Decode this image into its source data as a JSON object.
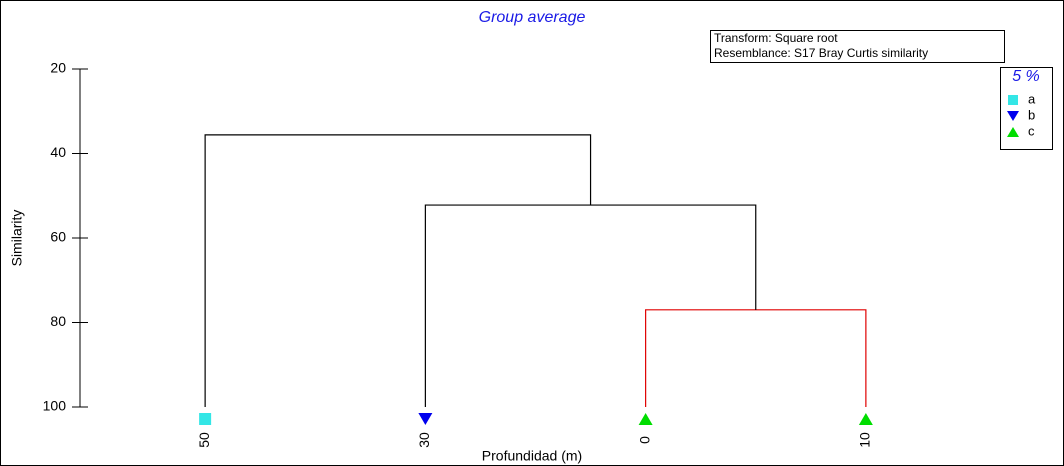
{
  "chart_data": {
    "type": "dendrogram",
    "title": "Group average",
    "ylabel": "Similarity",
    "xlabel": "Profundidad (m)",
    "annotations": [
      "Transform: Square root",
      "Resemblance: S17 Bray Curtis similarity"
    ],
    "legend_title": "5 %",
    "legend_position": "upper right",
    "groups": [
      {
        "name": "a",
        "color": "#33e6e6",
        "marker": "square"
      },
      {
        "name": "b",
        "color": "#0000ee",
        "marker": "triangle-down"
      },
      {
        "name": "c",
        "color": "#00dd00",
        "marker": "triangle-up"
      }
    ],
    "leaves": [
      {
        "label": "50",
        "group": 0
      },
      {
        "label": "30",
        "group": 1
      },
      {
        "label": "0",
        "group": 2
      },
      {
        "label": "10",
        "group": 2
      }
    ],
    "merges": [
      {
        "left": 2,
        "right": 3,
        "value": 77,
        "color": "#e00000"
      },
      {
        "left": 1,
        "right": 4,
        "value": 52.2,
        "color": "#000000"
      },
      {
        "left": 0,
        "right": 5,
        "value": 35.6,
        "color": "#000000"
      }
    ],
    "ylim": [
      20,
      100
    ],
    "y_inverted": true,
    "yticks": [
      20,
      40,
      60,
      80,
      100
    ]
  }
}
